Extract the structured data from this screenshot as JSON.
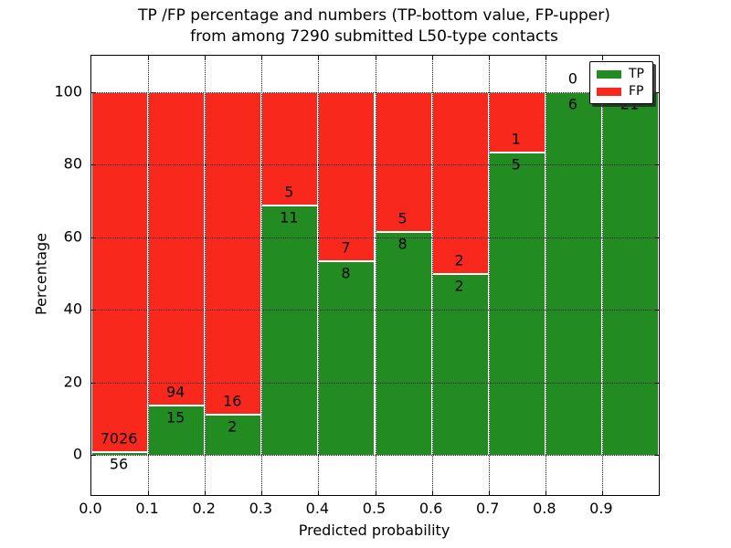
{
  "title": {
    "line1": "TP /FP percentage and numbers (TP-bottom value, FP-upper)",
    "line2": "from among 7290 submitted L50-type contacts"
  },
  "axes": {
    "xlabel": "Predicted probability",
    "ylabel": "Percentage",
    "xtick_labels": [
      "0.0",
      "0.1",
      "0.2",
      "0.3",
      "0.4",
      "0.5",
      "0.6",
      "0.7",
      "0.8",
      "0.9"
    ],
    "ytick_values": [
      0,
      20,
      40,
      60,
      80,
      100
    ],
    "ylim": [
      -11,
      110
    ],
    "xlim": [
      0,
      1
    ],
    "grid": "dotted"
  },
  "legend": {
    "position": "upper right",
    "items": [
      {
        "label": "TP",
        "color": "#228b22"
      },
      {
        "label": "FP",
        "color": "#f8291c"
      }
    ]
  },
  "colors": {
    "tp": "#228b22",
    "fp": "#f8291c",
    "background": "#ffffff",
    "text": "#000000"
  },
  "chart_data": {
    "type": "bar",
    "stacked": true,
    "normalized": "each bin shown as percent of bin total (TP+FP = 100%)",
    "total_submitted": 7290,
    "bin_edges": [
      0.0,
      0.1,
      0.2,
      0.3,
      0.4,
      0.5,
      0.6,
      0.7,
      0.8,
      0.9,
      1.0
    ],
    "categories": [
      "0.0-0.1",
      "0.1-0.2",
      "0.2-0.3",
      "0.3-0.4",
      "0.4-0.5",
      "0.5-0.6",
      "0.6-0.7",
      "0.7-0.8",
      "0.8-0.9",
      "0.9-1.0"
    ],
    "series": [
      {
        "name": "TP",
        "color": "#228b22",
        "counts": [
          56,
          15,
          2,
          11,
          8,
          8,
          2,
          5,
          6,
          21
        ]
      },
      {
        "name": "FP",
        "color": "#f8291c",
        "counts": [
          7026,
          94,
          16,
          5,
          7,
          5,
          2,
          1,
          0,
          0
        ]
      }
    ],
    "tp_percent_per_bin": [
      0.79,
      13.76,
      11.11,
      68.75,
      53.33,
      61.54,
      50.0,
      83.33,
      100.0,
      100.0
    ],
    "title": "TP /FP percentage and numbers (TP-bottom value, FP-upper) from among 7290 submitted L50-type contacts",
    "xlabel": "Predicted probability",
    "ylabel": "Percentage",
    "ylim": [
      -11,
      110
    ]
  }
}
